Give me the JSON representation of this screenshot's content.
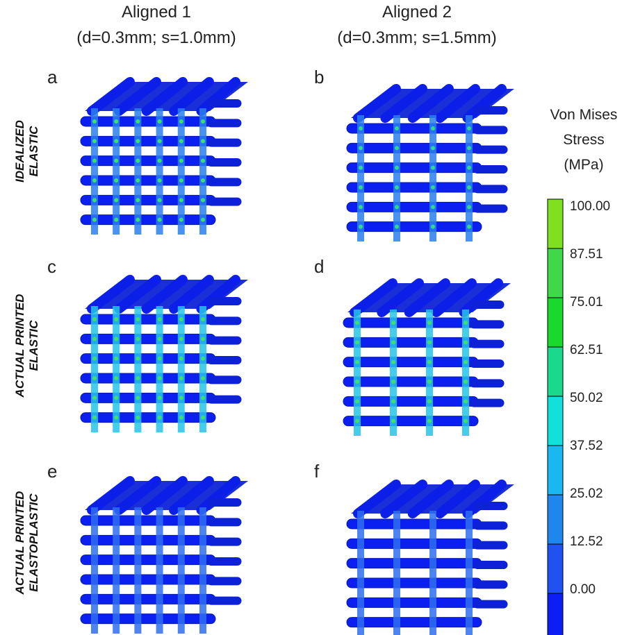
{
  "columns": [
    {
      "title": "Aligned 1",
      "subtitle": "(d=0.3mm; s=1.0mm)"
    },
    {
      "title": "Aligned 2",
      "subtitle": "(d=0.3mm; s=1.5mm)"
    }
  ],
  "rows": [
    {
      "label_lines": [
        "IDEALIZED",
        "ELASTIC"
      ]
    },
    {
      "label_lines": [
        "ACTUAL PRINTED",
        "ELASTIC"
      ]
    },
    {
      "label_lines": [
        "ACTUAL PRINTED",
        "ELASTOPLASTIC"
      ]
    }
  ],
  "panels": [
    "a",
    "b",
    "c",
    "d",
    "e",
    "f"
  ],
  "colorbar": {
    "title_lines": [
      "Von Mises",
      "Stress",
      "(MPa)"
    ],
    "labels": [
      "100.00",
      "87.51",
      "75.01",
      "62.51",
      "50.02",
      "37.52",
      "25.02",
      "12.52",
      "0.00"
    ],
    "colors": [
      "#7fe01f",
      "#3fd84a",
      "#1bd82c",
      "#1ad88c",
      "#12e0da",
      "#19b8f0",
      "#1f86f0",
      "#1f52f0",
      "#0a1ef5"
    ]
  }
}
